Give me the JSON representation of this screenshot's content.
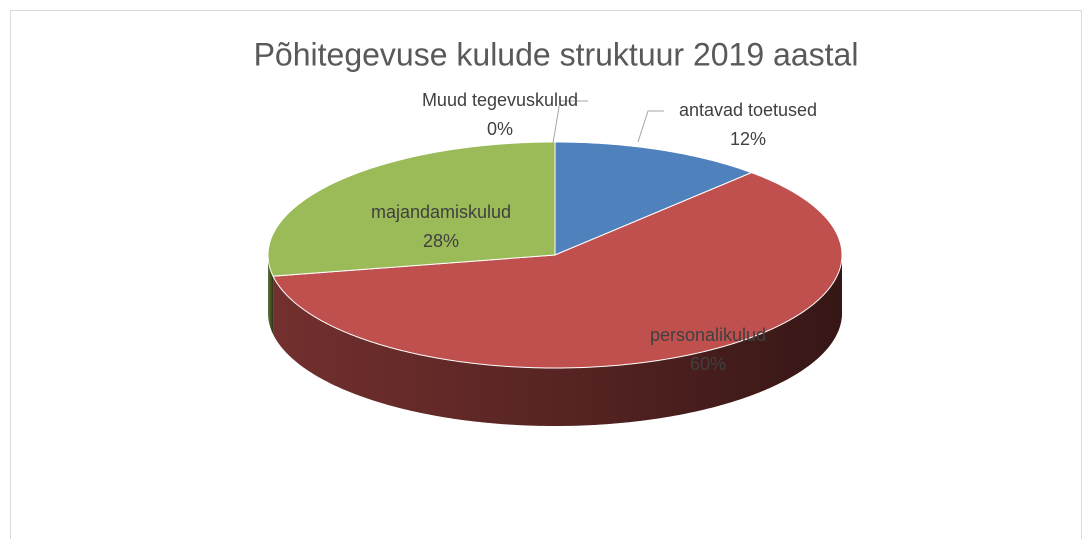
{
  "chart_data": {
    "type": "pie",
    "title": "Põhitegevuse kulude struktuur 2019 aastal",
    "categories": [
      "antavad toetused",
      "personalikulud",
      "majandamiskulud",
      "Muud tegevuskulud"
    ],
    "values": [
      12,
      60,
      28,
      0
    ],
    "value_labels": [
      "12%",
      "60%",
      "28%",
      "0%"
    ],
    "colors": [
      "#4f81bd",
      "#c0504d",
      "#9bbb59",
      "#a6a6a6"
    ]
  }
}
